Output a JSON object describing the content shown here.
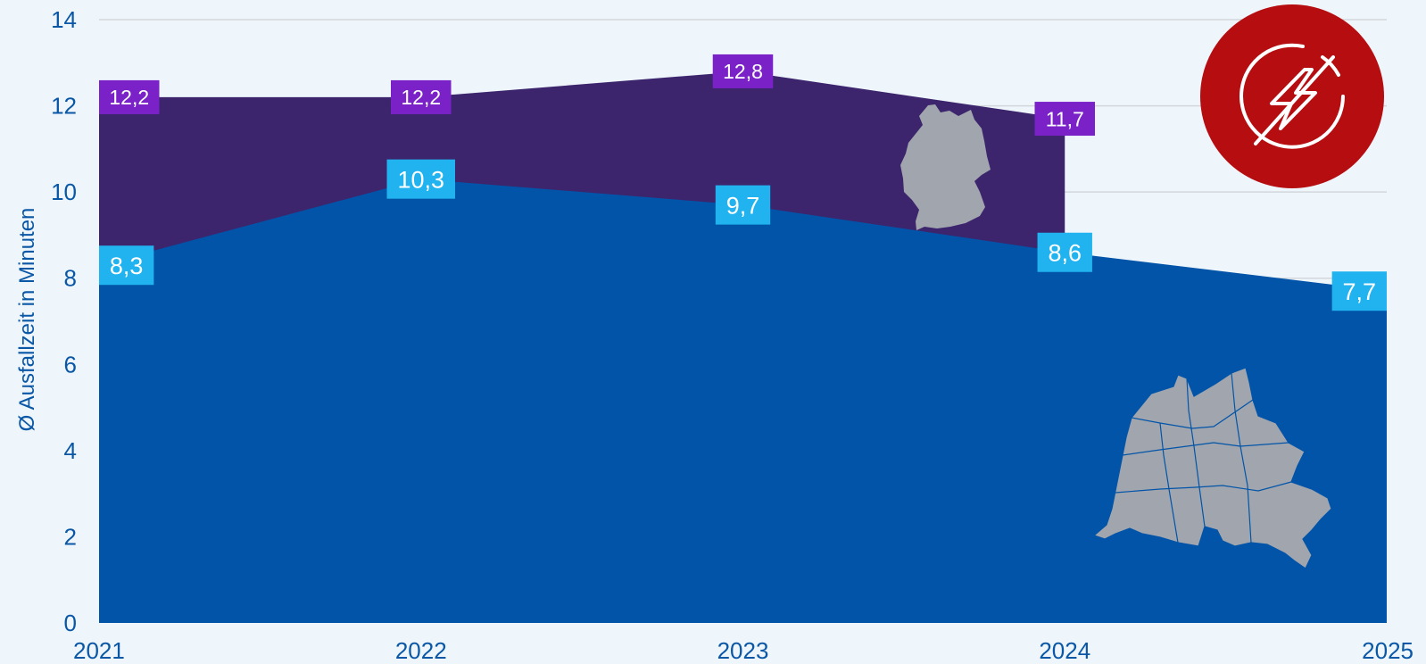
{
  "chart_data": {
    "type": "area",
    "title": "",
    "xlabel": "",
    "ylabel": "Ø Ausfallzeit in Minuten",
    "x": [
      "2021",
      "2022",
      "2023",
      "2024",
      "2025"
    ],
    "y_ticks": [
      "0",
      "2",
      "4",
      "6",
      "8",
      "10",
      "12",
      "14"
    ],
    "ylim": [
      0,
      14
    ],
    "grid": true,
    "series": [
      {
        "values": [
          12.2,
          12.2,
          12.8,
          11.7,
          null
        ],
        "labels": [
          "12,2",
          "12,2",
          "12,8",
          "11,7",
          ""
        ],
        "color": "#3c256d",
        "label_color": "#7a22c8",
        "icon": "germany-map-icon"
      },
      {
        "values": [
          8.3,
          10.3,
          9.7,
          8.6,
          7.7
        ],
        "labels": [
          "8,3",
          "10,3",
          "9,7",
          "8,6",
          "7,7"
        ],
        "color": "#0254a8",
        "label_color": "#20b3ef",
        "icon": "berlin-districts-map-icon"
      }
    ]
  },
  "badge": {
    "icon": "power-outage-icon",
    "color": "#b50d10"
  }
}
